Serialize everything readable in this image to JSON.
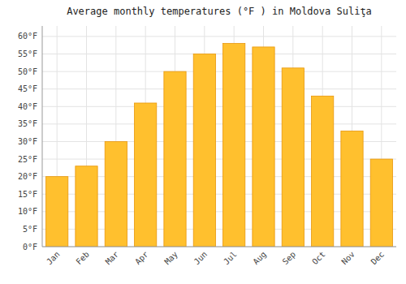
{
  "chart_data": {
    "type": "bar",
    "title": "Average monthly temperatures (°F ) in Moldova Suliţa",
    "categories": [
      "Jan",
      "Feb",
      "Mar",
      "Apr",
      "May",
      "Jun",
      "Jul",
      "Aug",
      "Sep",
      "Oct",
      "Nov",
      "Dec"
    ],
    "values": [
      20,
      23,
      30,
      41,
      50,
      55,
      58,
      57,
      51,
      43,
      33,
      25
    ],
    "color": "#FFC02E",
    "ylim": [
      0,
      63
    ],
    "yticks": [
      {
        "value": 0,
        "label": "0°F"
      },
      {
        "value": 5,
        "label": "5°F"
      },
      {
        "value": 10,
        "label": "10°F"
      },
      {
        "value": 15,
        "label": "15°F"
      },
      {
        "value": 20,
        "label": "20°F"
      },
      {
        "value": 25,
        "label": "25°F"
      },
      {
        "value": 30,
        "label": "30°F"
      },
      {
        "value": 35,
        "label": "35°F"
      },
      {
        "value": 40,
        "label": "40°F"
      },
      {
        "value": 45,
        "label": "45°F"
      },
      {
        "value": 50,
        "label": "50°F"
      },
      {
        "value": 55,
        "label": "55°F"
      },
      {
        "value": 60,
        "label": "60°F"
      }
    ],
    "grid": true
  }
}
